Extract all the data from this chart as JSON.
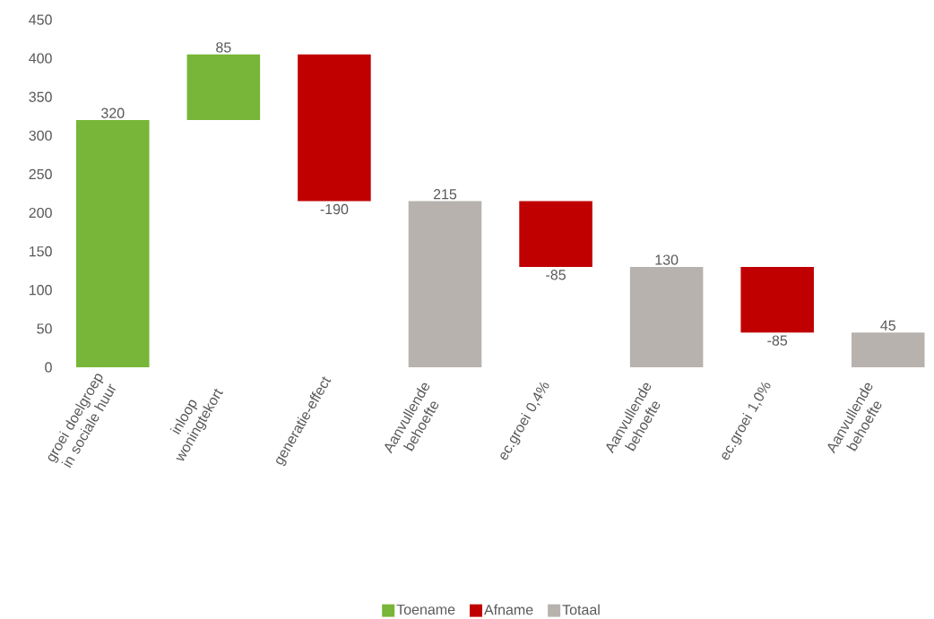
{
  "chart_data": {
    "type": "bar",
    "categories": [
      "groei doelgroep in sociale huur",
      "inloop woningtekort",
      "generatie-effect",
      "Aanvullende behoefte",
      "ec.groei 0,4%",
      "Aanvullende behoefte",
      "ec.groei 1,0%",
      "Aanvullende behoefte"
    ],
    "series": [
      {
        "name": "Toename",
        "color": "#77b638",
        "values": [
          320,
          85,
          null,
          null,
          null,
          null,
          null,
          null
        ],
        "base": [
          0,
          320,
          null,
          null,
          null,
          null,
          null,
          null
        ]
      },
      {
        "name": "Afname",
        "color": "#c00000",
        "values": [
          null,
          null,
          -190,
          null,
          -85,
          null,
          -85,
          null
        ],
        "base": [
          null,
          null,
          405,
          null,
          215,
          null,
          130,
          null
        ]
      },
      {
        "name": "Totaal",
        "color": "#b8b2ae",
        "values": [
          null,
          null,
          null,
          215,
          null,
          130,
          null,
          45
        ],
        "base": [
          null,
          null,
          null,
          0,
          null,
          0,
          null,
          0
        ]
      }
    ],
    "ylim": [
      0,
      450
    ],
    "yticks": [
      0,
      50,
      100,
      150,
      200,
      250,
      300,
      350,
      400,
      450
    ],
    "data_labels": true,
    "legend": "bottom"
  }
}
